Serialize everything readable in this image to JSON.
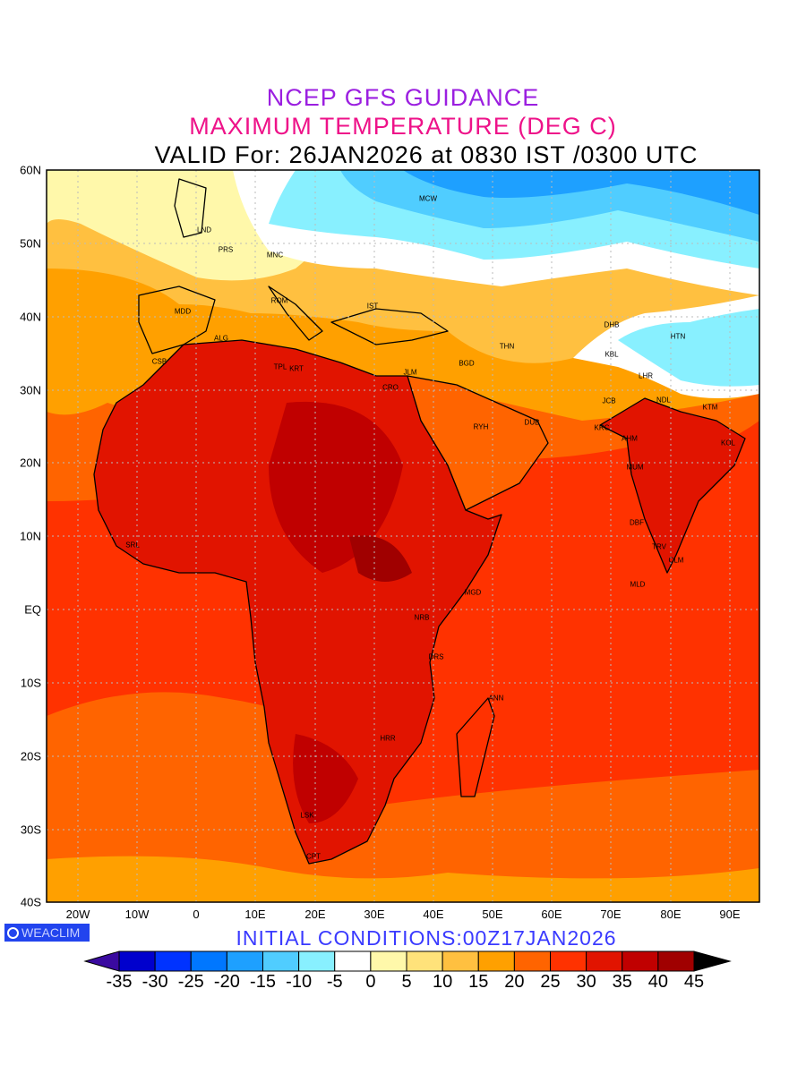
{
  "header": {
    "line1": "NCEP GFS GUIDANCE",
    "line2": "MAXIMUM TEMPERATURE (DEG C)",
    "line3": "VALID For: 26JAN2026 at 0830 IST /0300 UTC"
  },
  "footer": {
    "initial_conditions": "INITIAL CONDITIONS:00Z17JAN2026",
    "logo": "WEACLIM",
    "logo_icon": "copyright-icon"
  },
  "axes": {
    "lat_labels": [
      "60N",
      "50N",
      "40N",
      "30N",
      "20N",
      "10N",
      "EQ",
      "10S",
      "20S",
      "30S",
      "40S"
    ],
    "lon_labels": [
      "20W",
      "10W",
      "0",
      "10E",
      "20E",
      "30E",
      "40E",
      "50E",
      "60E",
      "70E",
      "80E",
      "90E"
    ]
  },
  "colorbar": {
    "labels": [
      "-35",
      "-30",
      "-25",
      "-20",
      "-15",
      "-10",
      "-5",
      "0",
      "5",
      "10",
      "15",
      "20",
      "25",
      "30",
      "35",
      "40",
      "45"
    ],
    "under_color": "#3a0aa0",
    "over_color": "#000000",
    "colors": [
      "#0000cd",
      "#0033ff",
      "#0077ff",
      "#1ea0ff",
      "#50cdff",
      "#88f0ff",
      "#ffffff",
      "#fff8aa",
      "#ffe27a",
      "#ffc040",
      "#ffa000",
      "#ff6400",
      "#ff3200",
      "#e11400",
      "#c00000",
      "#a00000"
    ]
  },
  "cities": [
    "LND",
    "PRS",
    "MNC",
    "MDD",
    "ROM",
    "IST",
    "ALG",
    "CSB",
    "TPL",
    "KRT",
    "CRO",
    "JLM",
    "BGD",
    "MCW",
    "THN",
    "DHB",
    "KBL",
    "HTN",
    "LHR",
    "JCB",
    "NDL",
    "KTM",
    "RYH",
    "DUB",
    "KRC",
    "AHM",
    "KOL",
    "MUM",
    "DBF",
    "TRV",
    "CLM",
    "MLD",
    "MGD",
    "NRB",
    "DRS",
    "ANN",
    "HRR",
    "LSK",
    "CPT",
    "SRL"
  ]
}
